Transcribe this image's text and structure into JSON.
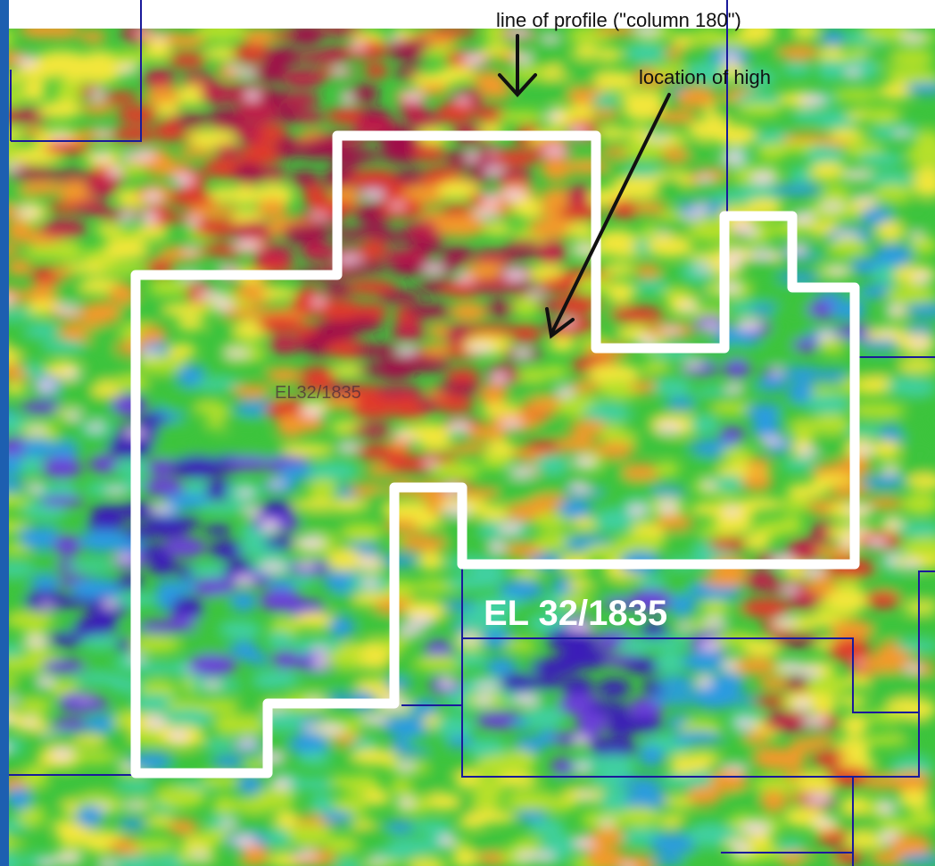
{
  "annotations": {
    "profile_line_label": "line of profile (\"column 180\")",
    "high_location_label": "location of high",
    "permit_label": "EL 32/1835",
    "faint_map_label": "EL32/1835"
  },
  "colors": {
    "background_blue": "#1d5fb0",
    "permit_boundary": "#ffffff",
    "tenement_lines": "#1a1a9a",
    "arrow": "#111111",
    "anomaly_palette": [
      "#3a1fb8",
      "#6a3fd8",
      "#2a9be0",
      "#3fd0a0",
      "#3cc43c",
      "#b6e02a",
      "#f2e63a",
      "#f29a2a",
      "#e03a2a",
      "#c01a4a",
      "#a0104a",
      "#f4d6ec"
    ]
  },
  "legend": {
    "map_type": "magnetic anomaly image with tenement boundaries"
  }
}
